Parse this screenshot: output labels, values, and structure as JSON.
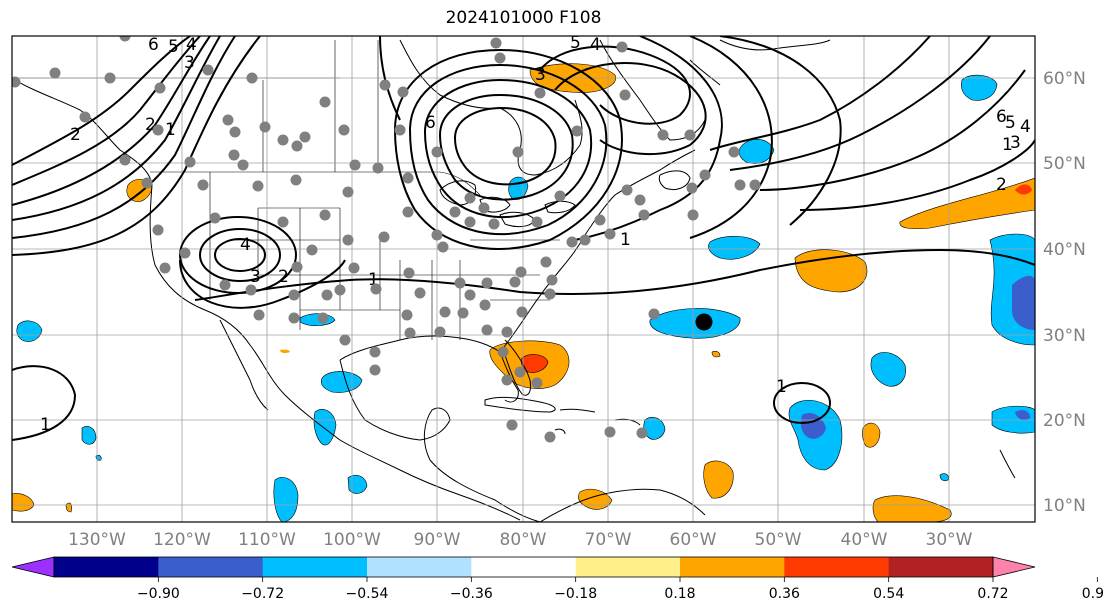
{
  "title": "2024101000 F108",
  "latitude_labels": [
    "60°N",
    "50°N",
    "40°N",
    "30°N",
    "20°N",
    "10°N"
  ],
  "longitude_labels": [
    "130°W",
    "120°W",
    "110°W",
    "100°W",
    "90°W",
    "80°W",
    "70°W",
    "60°W",
    "50°W",
    "40°W",
    "30°W"
  ],
  "colorbar": {
    "ticks": [
      "−0.90",
      "−0.72",
      "−0.54",
      "−0.36",
      "−0.18",
      "0.18",
      "0.36",
      "0.54",
      "0.72",
      "0.90"
    ],
    "colors": [
      "#9b30ff",
      "#00008b",
      "#3a5fcd",
      "#00bfff",
      "#b0e2ff",
      "#ffffff",
      "#fff08c",
      "#ffa500",
      "#ff3a00",
      "#b22222",
      "#ff82ab"
    ]
  },
  "contour_labels": [
    "6",
    "5",
    "4",
    "3",
    "2",
    "1",
    "6",
    "5",
    "4",
    "3",
    "2",
    "1",
    "4",
    "3",
    "2",
    "1",
    "1",
    "1",
    "1",
    "2",
    "3",
    "4",
    "5",
    "6"
  ],
  "marker_colors": {
    "station": "#808080",
    "storm": "#000000"
  }
}
